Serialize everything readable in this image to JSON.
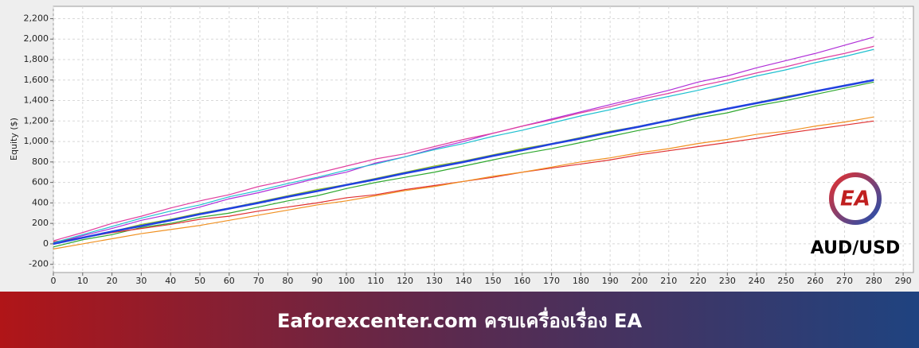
{
  "chart_data": {
    "type": "line",
    "y_label": "Equity ($)",
    "x": [
      0,
      10,
      20,
      30,
      40,
      50,
      60,
      70,
      80,
      90,
      100,
      110,
      120,
      130,
      140,
      150,
      160,
      170,
      180,
      190,
      200,
      210,
      220,
      230,
      240,
      250,
      260,
      270,
      280
    ],
    "series": [
      {
        "color": "#b02fd8",
        "values": [
          0,
          80,
          150,
          230,
          290,
          360,
          440,
          500,
          570,
          640,
          700,
          790,
          850,
          930,
          1000,
          1080,
          1150,
          1220,
          1290,
          1360,
          1430,
          1500,
          1580,
          1640,
          1720,
          1790,
          1860,
          1940,
          2020
        ]
      },
      {
        "color": "#2fa82f",
        "values": [
          -30,
          40,
          90,
          160,
          200,
          260,
          300,
          360,
          420,
          470,
          540,
          600,
          650,
          700,
          760,
          820,
          880,
          930,
          990,
          1050,
          1110,
          1160,
          1230,
          1280,
          1350,
          1400,
          1460,
          1520,
          1580
        ]
      },
      {
        "color": "#e03030",
        "values": [
          20,
          60,
          110,
          150,
          190,
          240,
          270,
          320,
          360,
          400,
          450,
          480,
          530,
          570,
          610,
          650,
          700,
          740,
          780,
          820,
          870,
          910,
          950,
          990,
          1030,
          1080,
          1120,
          1160,
          1200
        ]
      },
      {
        "color": "#20c0d0",
        "values": [
          10,
          90,
          170,
          250,
          320,
          380,
          460,
          520,
          590,
          650,
          720,
          780,
          850,
          920,
          980,
          1050,
          1110,
          1180,
          1250,
          1310,
          1380,
          1440,
          1500,
          1570,
          1640,
          1700,
          1770,
          1830,
          1900
        ]
      },
      {
        "color": "#f09020",
        "values": [
          -50,
          0,
          50,
          100,
          140,
          180,
          230,
          280,
          330,
          380,
          420,
          470,
          520,
          560,
          610,
          660,
          700,
          750,
          800,
          840,
          890,
          930,
          980,
          1020,
          1070,
          1100,
          1150,
          1190,
          1240
        ]
      },
      {
        "color": "#e040a0",
        "values": [
          30,
          110,
          200,
          270,
          350,
          420,
          480,
          560,
          620,
          690,
          760,
          830,
          880,
          950,
          1020,
          1080,
          1150,
          1210,
          1280,
          1340,
          1410,
          1470,
          1540,
          1600,
          1670,
          1730,
          1800,
          1860,
          1930
        ]
      },
      {
        "color": "#90c020",
        "values": [
          0,
          60,
          120,
          190,
          240,
          300,
          350,
          410,
          470,
          530,
          580,
          640,
          700,
          760,
          810,
          870,
          930,
          980,
          1040,
          1100,
          1150,
          1210,
          1270,
          1320,
          1380,
          1440,
          1490,
          1550,
          1600
        ]
      },
      {
        "color": "#2040e0",
        "values": [
          0,
          60,
          120,
          175,
          230,
          290,
          345,
          400,
          460,
          515,
          575,
          630,
          690,
          745,
          800,
          860,
          915,
          975,
          1030,
          1090,
          1145,
          1205,
          1260,
          1320,
          1375,
          1430,
          1490,
          1545,
          1600
        ]
      }
    ],
    "xlim": [
      0,
      293.5
    ],
    "ylim": [
      -280,
      2320
    ],
    "xticks": [
      0,
      10,
      20,
      30,
      40,
      50,
      60,
      70,
      80,
      90,
      100,
      110,
      120,
      130,
      140,
      150,
      160,
      170,
      180,
      190,
      200,
      210,
      220,
      230,
      240,
      250,
      260,
      270,
      280,
      290
    ],
    "yticks": [
      -200,
      0,
      200,
      400,
      600,
      800,
      {
        "value": 1000,
        "label": "1,000"
      },
      {
        "value": 1200,
        "label": "1,200"
      },
      {
        "value": 1400,
        "label": "1,400"
      },
      {
        "value": 1600,
        "label": "1,600"
      },
      {
        "value": 1800,
        "label": "1,800"
      },
      {
        "value": 2000,
        "label": "2,000"
      },
      {
        "value": 2200,
        "label": "2,200"
      }
    ],
    "grid": true
  },
  "logo": {
    "mark": "EA",
    "pair": "AUD/USD"
  },
  "banner": {
    "text": "Eaforexcenter.com ครบเครื่องเรื่อง EA"
  }
}
